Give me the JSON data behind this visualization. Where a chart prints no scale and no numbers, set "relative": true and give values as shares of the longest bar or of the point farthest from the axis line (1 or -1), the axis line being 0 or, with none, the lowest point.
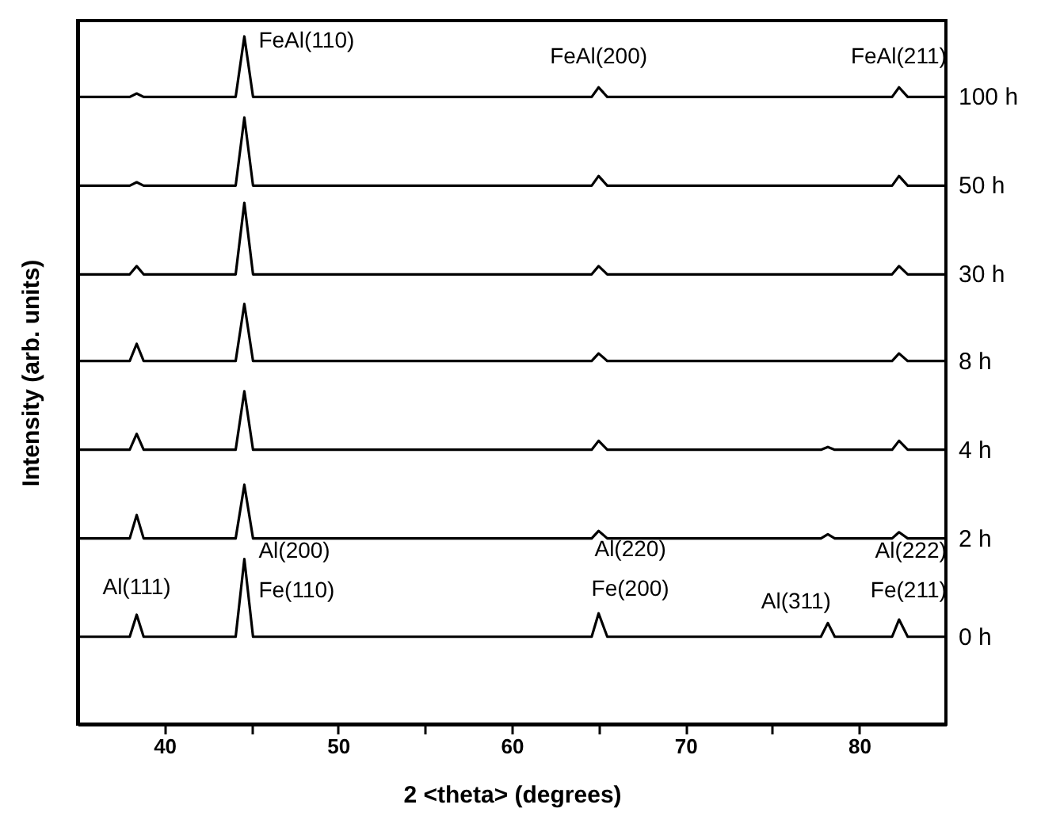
{
  "chart_data": {
    "type": "line",
    "relative": true,
    "xlabel": "2 <theta> (degrees)",
    "ylabel": "Intensity (arb. units)",
    "xlim": [
      35,
      85
    ],
    "xticks": [
      40,
      {
        "value": 45,
        "label": null
      },
      50,
      {
        "value": 55,
        "label": null
      },
      60,
      {
        "value": 65,
        "label": null
      },
      70,
      {
        "value": 75,
        "label": null
      },
      80
    ],
    "x": [
      35,
      38.0,
      38.4,
      38.8,
      44.1,
      44.6,
      45.1,
      64.6,
      65.0,
      65.5,
      77.8,
      78.2,
      78.6,
      81.9,
      82.3,
      82.8,
      85
    ],
    "series": [
      {
        "name": "100 h",
        "color": "#000000",
        "values": [
          0.912,
          0.912,
          0.917,
          0.912,
          0.912,
          1.0,
          0.912,
          0.912,
          0.926,
          0.912,
          0.912,
          0.912,
          0.912,
          0.912,
          0.926,
          0.912,
          0.912
        ]
      },
      {
        "name": "50 h",
        "color": "#000000",
        "values": [
          0.783,
          0.783,
          0.788,
          0.783,
          0.783,
          0.882,
          0.783,
          0.783,
          0.797,
          0.783,
          0.783,
          0.783,
          0.783,
          0.783,
          0.797,
          0.783,
          0.783
        ]
      },
      {
        "name": "30 h",
        "color": "#000000",
        "values": [
          0.654,
          0.654,
          0.666,
          0.654,
          0.654,
          0.758,
          0.654,
          0.654,
          0.666,
          0.654,
          0.654,
          0.654,
          0.654,
          0.654,
          0.666,
          0.654,
          0.654
        ]
      },
      {
        "name": "8 h",
        "color": "#000000",
        "values": [
          0.528,
          0.528,
          0.553,
          0.528,
          0.528,
          0.611,
          0.528,
          0.528,
          0.539,
          0.528,
          0.528,
          0.528,
          0.528,
          0.528,
          0.539,
          0.528,
          0.528
        ]
      },
      {
        "name": "4 h",
        "color": "#000000",
        "values": [
          0.399,
          0.399,
          0.422,
          0.399,
          0.399,
          0.484,
          0.399,
          0.399,
          0.412,
          0.399,
          0.399,
          0.403,
          0.399,
          0.399,
          0.412,
          0.399,
          0.399
        ]
      },
      {
        "name": "2 h",
        "color": "#000000",
        "values": [
          0.27,
          0.27,
          0.304,
          0.27,
          0.27,
          0.348,
          0.27,
          0.27,
          0.281,
          0.27,
          0.27,
          0.276,
          0.27,
          0.27,
          0.279,
          0.27,
          0.27
        ]
      },
      {
        "name": "0 h",
        "color": "#000000",
        "values": [
          0.127,
          0.127,
          0.159,
          0.127,
          0.127,
          0.24,
          0.127,
          0.127,
          0.161,
          0.127,
          0.127,
          0.147,
          0.127,
          0.127,
          0.152,
          0.127,
          0.127
        ]
      }
    ],
    "annotations": [
      {
        "text": "FeAl(110)",
        "x": 44.6,
        "y": 1.0
      },
      {
        "text": "FeAl(200)",
        "x": 65,
        "y": 0.926
      },
      {
        "text": "FeAl(211)",
        "x": 82.3,
        "y": 0.926
      },
      {
        "text": "Al(111)",
        "x": 38.4,
        "y": 0.159
      },
      {
        "text": "Al(200)\nFe(110)",
        "x": 44.6,
        "y": 0.24
      },
      {
        "text": "Al(220)\nFe(200)",
        "x": 65,
        "y": 0.161
      },
      {
        "text": "Al(311)",
        "x": 78.2,
        "y": 0.147
      },
      {
        "text": "Al(222)\nFe(211)",
        "x": 82.3,
        "y": 0.152
      }
    ]
  }
}
